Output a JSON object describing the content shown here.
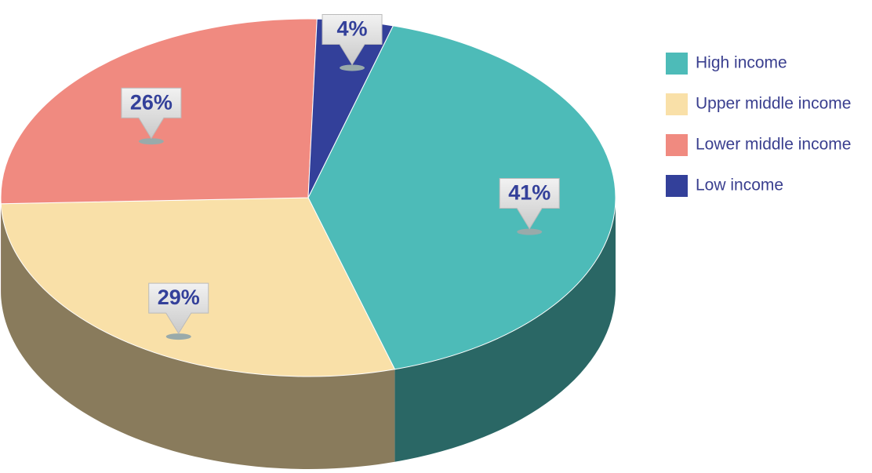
{
  "chart_data": {
    "type": "pie",
    "categories": [
      "High income",
      "Upper middle income",
      "Lower middle income",
      "Low income"
    ],
    "values": [
      41,
      29,
      26,
      4
    ],
    "value_labels": [
      "41%",
      "29%",
      "26%",
      "4%"
    ],
    "colors": [
      "#4dbbb8",
      "#f9e0a8",
      "#f08a80",
      "#33409a"
    ],
    "legend": "top-right"
  }
}
